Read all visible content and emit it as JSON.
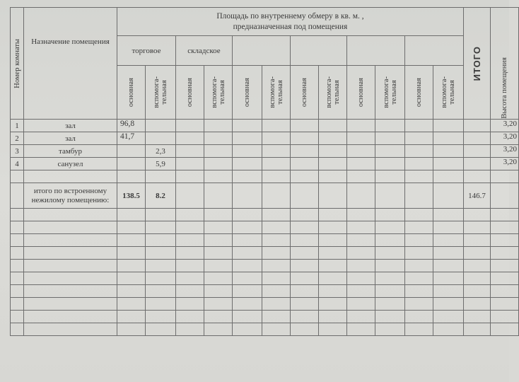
{
  "header": {
    "room_number": "Номер комнаты",
    "purpose": "Назначение помещения",
    "area_title": "Площадь по внутреннему обмеру в кв. м. ,\nпредназначенная под помещения",
    "categories": [
      "торговое",
      "складское",
      "",
      "",
      "",
      ""
    ],
    "main": "основная",
    "aux": "вспомога-\nтельная",
    "total": "ИТОГО",
    "height": "Высота помещения"
  },
  "rows": [
    {
      "no": "1",
      "name": "зал",
      "main": "96,8",
      "aux": "",
      "height": "3,20"
    },
    {
      "no": "2",
      "name": "зал",
      "main": "41,7",
      "aux": "",
      "height": "3,20"
    },
    {
      "no": "3",
      "name": "тамбур",
      "main": "",
      "aux": "2,3",
      "height": "3,20"
    },
    {
      "no": "4",
      "name": "санузел",
      "main": "",
      "aux": "5,9",
      "height": "3,20"
    }
  ],
  "total_row": {
    "label": "итого по встроенному нежилому помещению:",
    "main": "138.5",
    "aux": "8.2",
    "total": "146.7"
  }
}
